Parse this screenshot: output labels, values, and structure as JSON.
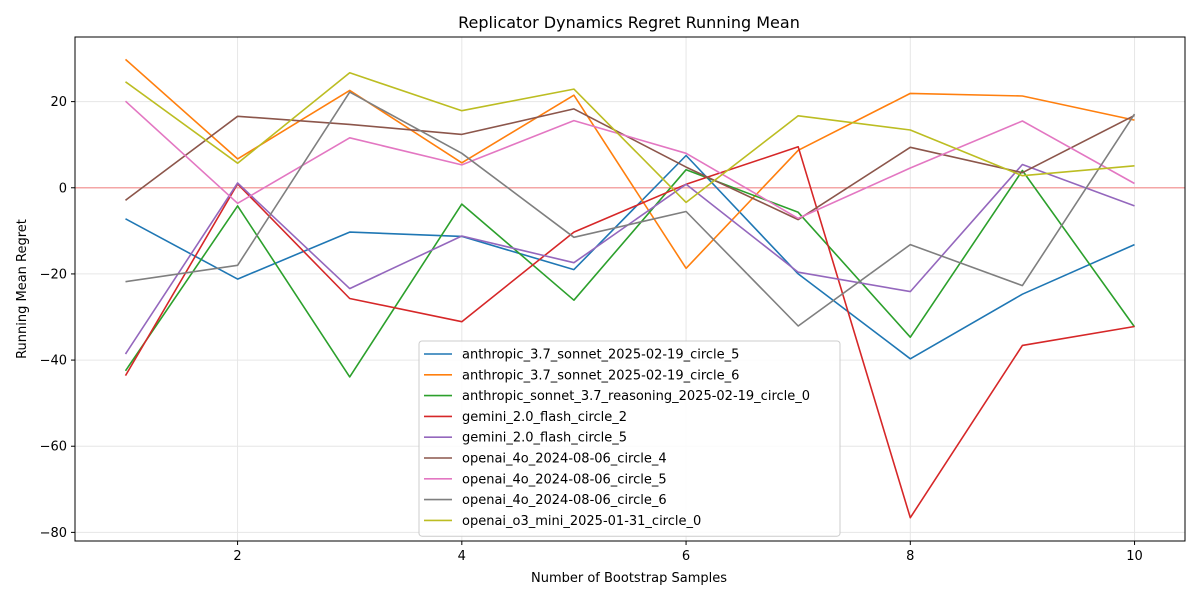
{
  "chart_data": {
    "type": "line",
    "title": "Replicator Dynamics Regret Running Mean",
    "xlabel": "Number of Bootstrap Samples",
    "ylabel": "Running Mean Regret",
    "xlim": [
      0.55,
      10.45
    ],
    "ylim": [
      -82,
      35
    ],
    "xticks": [
      2,
      4,
      6,
      8,
      10
    ],
    "yticks": [
      -80,
      -60,
      -40,
      -20,
      0,
      20
    ],
    "grid": true,
    "legend_position": "lower-center",
    "reference_line": {
      "y": 0,
      "color": "#f4a6a6"
    },
    "x": [
      1,
      2,
      3,
      4,
      5,
      6,
      7,
      8,
      9,
      10
    ],
    "series": [
      {
        "name": "anthropic_3.7_sonnet_2025-02-19_circle_5",
        "color": "#1f77b4",
        "values": [
          -7.2,
          -21.2,
          -10.3,
          -11.3,
          -19.0,
          7.5,
          -20.0,
          -39.7,
          -24.7,
          -13.2
        ]
      },
      {
        "name": "anthropic_3.7_sonnet_2025-02-19_circle_6",
        "color": "#ff7f0e",
        "values": [
          29.8,
          6.7,
          22.6,
          5.8,
          21.5,
          -18.7,
          8.7,
          21.9,
          21.3,
          15.7
        ]
      },
      {
        "name": "anthropic_sonnet_3.7_reasoning_2025-02-19_circle_0",
        "color": "#2ca02c",
        "values": [
          -42.5,
          -4.2,
          -43.9,
          -3.8,
          -26.1,
          4.2,
          -5.7,
          -34.7,
          4.0,
          -32.3
        ]
      },
      {
        "name": "gemini_2.0_flash_circle_2",
        "color": "#d62728",
        "values": [
          -43.6,
          0.9,
          -25.7,
          -31.1,
          -10.3,
          0.8,
          9.5,
          -76.6,
          -36.6,
          -32.2
        ]
      },
      {
        "name": "gemini_2.0_flash_circle_5",
        "color": "#9467bd",
        "values": [
          -38.6,
          1.1,
          -23.4,
          -11.2,
          -17.4,
          0.8,
          -19.6,
          -24.1,
          5.4,
          -4.2
        ]
      },
      {
        "name": "openai_4o_2024-08-06_circle_4",
        "color": "#8c564b",
        "values": [
          -2.9,
          16.6,
          14.7,
          12.4,
          18.3,
          4.8,
          -7.4,
          9.4,
          3.5,
          16.8
        ]
      },
      {
        "name": "openai_4o_2024-08-06_circle_5",
        "color": "#e377c2",
        "values": [
          20.1,
          -3.6,
          11.6,
          5.3,
          15.6,
          8.0,
          -7.1,
          4.6,
          15.5,
          1.0
        ]
      },
      {
        "name": "openai_4o_2024-08-06_circle_6",
        "color": "#7f7f7f",
        "values": [
          -21.8,
          -18.0,
          22.2,
          8.0,
          -11.5,
          -5.5,
          -32.1,
          -13.2,
          -22.7,
          17.1
        ]
      },
      {
        "name": "openai_o3_mini_2025-01-31_circle_0",
        "color": "#bcbd22",
        "values": [
          24.6,
          5.7,
          26.7,
          17.9,
          22.9,
          -3.4,
          16.7,
          13.4,
          2.8,
          5.1
        ]
      }
    ]
  }
}
